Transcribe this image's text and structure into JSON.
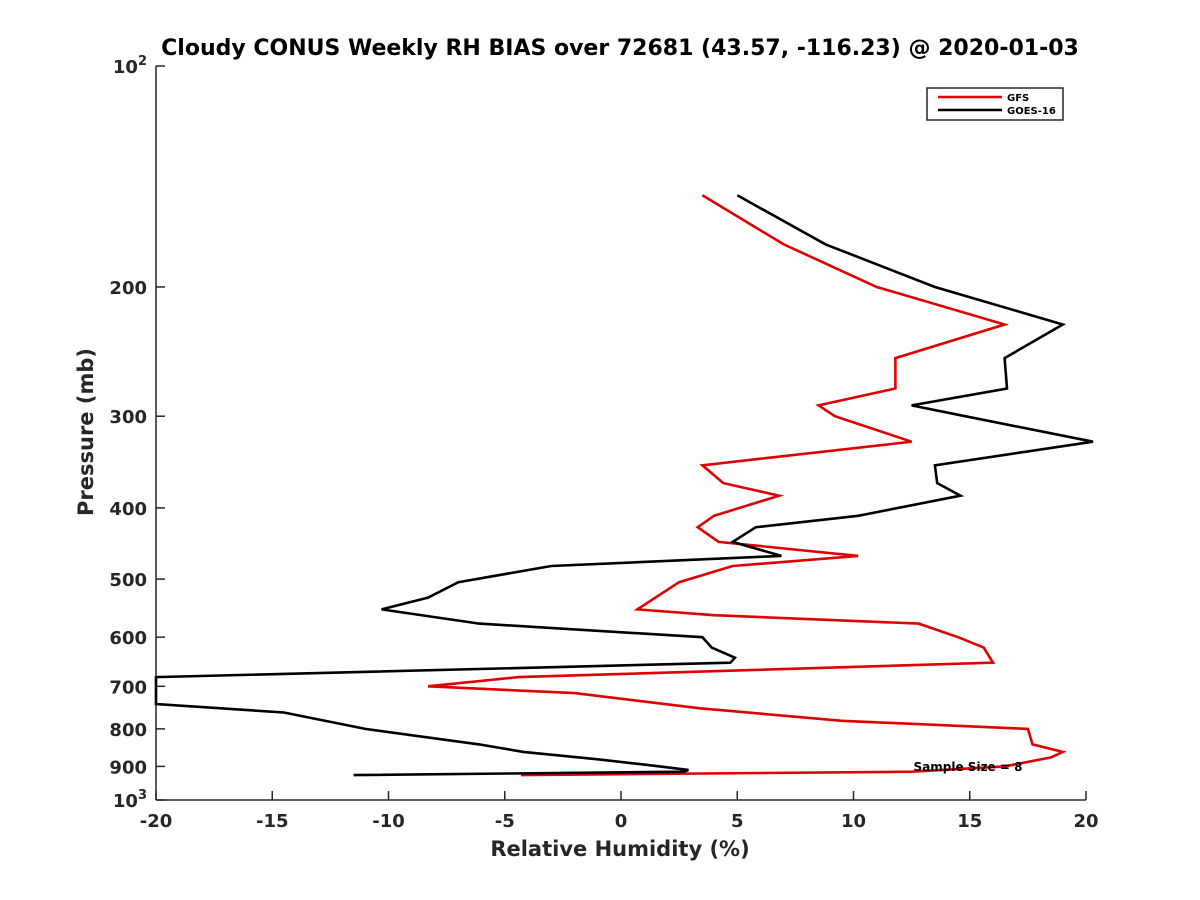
{
  "chart_data": {
    "type": "line",
    "title": "Cloudy CONUS Weekly RH BIAS over 72681 (43.57, -116.23) @ 2020-01-03",
    "xlabel": "Relative Humidity (%)",
    "ylabel": "Pressure (mb)",
    "xlim": [
      -20,
      20
    ],
    "ylim": [
      100,
      1000
    ],
    "y_scale": "log",
    "y_reversed": true,
    "grid": false,
    "legend_position": "top-right",
    "x_ticks": [
      "-20",
      "-15",
      "-10",
      "-5",
      "0",
      "5",
      "10",
      "15",
      "20"
    ],
    "y_ticks": [
      {
        "value": 100,
        "base": "10",
        "exp": "2"
      },
      {
        "value": 200,
        "label": "200"
      },
      {
        "value": 300,
        "label": "300"
      },
      {
        "value": 400,
        "label": "400"
      },
      {
        "value": 500,
        "label": "500"
      },
      {
        "value": 600,
        "label": "600"
      },
      {
        "value": 700,
        "label": "700"
      },
      {
        "value": 800,
        "label": "800"
      },
      {
        "value": 900,
        "label": "900"
      },
      {
        "value": 1000,
        "base": "10",
        "exp": "3"
      }
    ],
    "series": [
      {
        "name": "GFS",
        "color": "#e00000",
        "points": [
          [
            3.5,
            150
          ],
          [
            7.0,
            175
          ],
          [
            11.0,
            200
          ],
          [
            16.5,
            225
          ],
          [
            11.8,
            250
          ],
          [
            11.8,
            275
          ],
          [
            8.5,
            290
          ],
          [
            9.2,
            300
          ],
          [
            12.5,
            325
          ],
          [
            3.5,
            350
          ],
          [
            4.4,
            370
          ],
          [
            6.8,
            385
          ],
          [
            4.0,
            410
          ],
          [
            3.3,
            425
          ],
          [
            4.2,
            445
          ],
          [
            10.2,
            465
          ],
          [
            4.8,
            480
          ],
          [
            2.5,
            505
          ],
          [
            0.7,
            550
          ],
          [
            4.0,
            560
          ],
          [
            12.8,
            575
          ],
          [
            14.5,
            600
          ],
          [
            15.6,
            620
          ],
          [
            16.0,
            650
          ],
          [
            -4.4,
            680
          ],
          [
            -8.3,
            700
          ],
          [
            -2.0,
            715
          ],
          [
            3.4,
            750
          ],
          [
            9.5,
            780
          ],
          [
            17.5,
            800
          ],
          [
            17.7,
            840
          ],
          [
            19.0,
            860
          ],
          [
            18.5,
            875
          ],
          [
            16.5,
            900
          ],
          [
            12.5,
            915
          ],
          [
            -4.3,
            925
          ]
        ]
      },
      {
        "name": "GOES-16",
        "color": "#000000",
        "points": [
          [
            5.0,
            150
          ],
          [
            8.8,
            175
          ],
          [
            13.5,
            200
          ],
          [
            19.0,
            225
          ],
          [
            16.5,
            250
          ],
          [
            16.6,
            275
          ],
          [
            12.5,
            290
          ],
          [
            14.8,
            300
          ],
          [
            20.3,
            325
          ],
          [
            13.5,
            350
          ],
          [
            13.6,
            370
          ],
          [
            14.6,
            385
          ],
          [
            10.2,
            410
          ],
          [
            5.8,
            425
          ],
          [
            4.8,
            445
          ],
          [
            6.9,
            465
          ],
          [
            -3.0,
            480
          ],
          [
            -7.0,
            505
          ],
          [
            -8.3,
            530
          ],
          [
            -10.3,
            550
          ],
          [
            -6.1,
            575
          ],
          [
            3.5,
            600
          ],
          [
            3.9,
            620
          ],
          [
            4.9,
            640
          ],
          [
            4.7,
            650
          ],
          [
            -20.0,
            680
          ],
          [
            -20.0,
            700
          ],
          [
            -20.0,
            740
          ],
          [
            -14.5,
            760
          ],
          [
            -11.0,
            800
          ],
          [
            -6.1,
            840
          ],
          [
            -4.2,
            860
          ],
          [
            -1.0,
            880
          ],
          [
            1.0,
            895
          ],
          [
            2.9,
            910
          ],
          [
            2.7,
            915
          ],
          [
            -11.5,
            925
          ]
        ]
      }
    ],
    "annotations": [
      {
        "text": "Sample Size = 8"
      }
    ]
  }
}
